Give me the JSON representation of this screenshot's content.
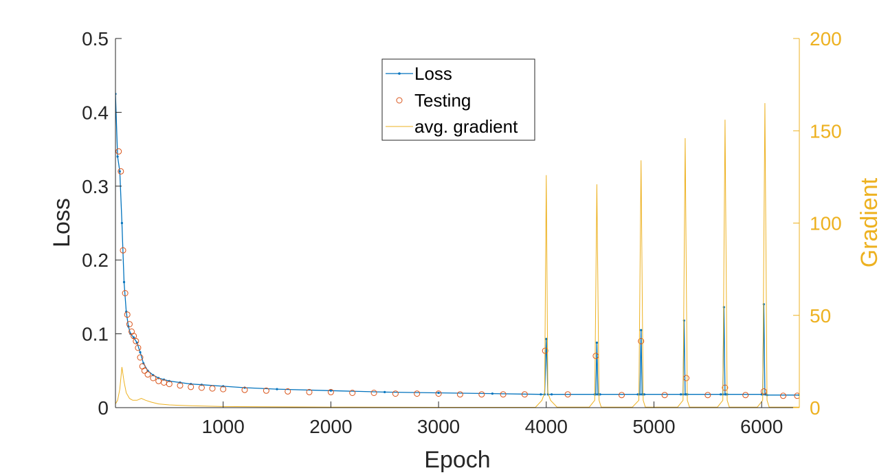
{
  "chart_data": {
    "type": "line",
    "title": "",
    "xlabel": "Epoch",
    "ylabel": "Loss",
    "y2label": "Gradient",
    "xlim": [
      0,
      6350
    ],
    "ylim": [
      0,
      0.5
    ],
    "y2lim": [
      0,
      200
    ],
    "xticks": [
      1000,
      2000,
      3000,
      4000,
      5000,
      6000
    ],
    "yticks": [
      0,
      0.1,
      0.2,
      0.3,
      0.4,
      0.5
    ],
    "y2ticks": [
      0,
      50,
      100,
      150,
      200
    ],
    "grid": false,
    "legend_position": "top-center",
    "colors": {
      "loss": "#0072BD",
      "testing": "#D95319",
      "gradient": "#EDB120",
      "axis": "#262626"
    },
    "series": [
      {
        "name": "Loss",
        "axis": "left",
        "style": "line-dot",
        "x": [
          0,
          20,
          40,
          60,
          80,
          100,
          120,
          140,
          170,
          200,
          230,
          260,
          300,
          350,
          400,
          450,
          500,
          600,
          700,
          800,
          1000,
          1200,
          1500,
          2000,
          2500,
          3000,
          3500,
          3950,
          3985,
          4000,
          4015,
          4050,
          4450,
          4460,
          4470,
          4480,
          4490,
          4500,
          4850,
          4870,
          4880,
          4890,
          4900,
          4910,
          5250,
          5270,
          5280,
          5290,
          5300,
          5310,
          5620,
          5640,
          5650,
          5660,
          5670,
          5680,
          6000,
          6010,
          6020,
          6030,
          6040,
          6050,
          6350
        ],
        "y": [
          0.425,
          0.34,
          0.32,
          0.25,
          0.17,
          0.13,
          0.11,
          0.1,
          0.095,
          0.088,
          0.075,
          0.06,
          0.05,
          0.044,
          0.04,
          0.038,
          0.036,
          0.034,
          0.032,
          0.031,
          0.029,
          0.027,
          0.025,
          0.023,
          0.021,
          0.02,
          0.019,
          0.018,
          0.018,
          0.093,
          0.018,
          0.018,
          0.018,
          0.018,
          0.088,
          0.018,
          0.018,
          0.018,
          0.018,
          0.018,
          0.105,
          0.018,
          0.018,
          0.018,
          0.018,
          0.018,
          0.118,
          0.018,
          0.018,
          0.018,
          0.018,
          0.018,
          0.136,
          0.018,
          0.018,
          0.018,
          0.018,
          0.018,
          0.14,
          0.018,
          0.018,
          0.017,
          0.017
        ]
      },
      {
        "name": "Testing",
        "axis": "left",
        "style": "circle",
        "x": [
          30,
          50,
          70,
          90,
          110,
          130,
          150,
          170,
          190,
          210,
          230,
          250,
          270,
          300,
          350,
          400,
          450,
          500,
          600,
          700,
          800,
          900,
          1000,
          1200,
          1400,
          1600,
          1800,
          2000,
          2200,
          2400,
          2600,
          2800,
          3000,
          3200,
          3400,
          3600,
          3800,
          3990,
          4200,
          4460,
          4700,
          4880,
          5100,
          5300,
          5500,
          5660,
          5850,
          6020,
          6200,
          6330
        ],
        "y": [
          0.347,
          0.32,
          0.213,
          0.155,
          0.126,
          0.113,
          0.103,
          0.097,
          0.09,
          0.081,
          0.068,
          0.056,
          0.05,
          0.045,
          0.04,
          0.036,
          0.034,
          0.032,
          0.03,
          0.028,
          0.027,
          0.026,
          0.025,
          0.024,
          0.023,
          0.022,
          0.021,
          0.021,
          0.02,
          0.02,
          0.019,
          0.019,
          0.019,
          0.018,
          0.018,
          0.018,
          0.018,
          0.077,
          0.018,
          0.07,
          0.017,
          0.09,
          0.017,
          0.04,
          0.017,
          0.027,
          0.017,
          0.022,
          0.016,
          0.016
        ]
      },
      {
        "name": "avg. gradient",
        "axis": "right",
        "style": "line",
        "x": [
          0,
          20,
          40,
          60,
          80,
          100,
          130,
          160,
          200,
          240,
          280,
          330,
          400,
          500,
          700,
          1000,
          1500,
          2000,
          3000,
          3900,
          3960,
          3985,
          4000,
          4015,
          4040,
          4100,
          4400,
          4450,
          4470,
          4490,
          4510,
          4560,
          4800,
          4860,
          4880,
          4900,
          4920,
          4970,
          5220,
          5270,
          5290,
          5310,
          5330,
          5380,
          5590,
          5640,
          5660,
          5680,
          5700,
          5750,
          5960,
          6010,
          6030,
          6050,
          6070,
          6120,
          6350
        ],
        "y": [
          2,
          4,
          10,
          22,
          14,
          8,
          5,
          4,
          4,
          5,
          4,
          3,
          2,
          1.5,
          1,
          0.6,
          0.4,
          0.3,
          0.2,
          0.2,
          4,
          8,
          126,
          8,
          4,
          0.3,
          0.3,
          4,
          121,
          4,
          0.3,
          0.3,
          0.3,
          4,
          134,
          4,
          0.3,
          0.3,
          0.3,
          4,
          146,
          4,
          0.3,
          0.3,
          0.3,
          4,
          156,
          4,
          0.3,
          0.3,
          0.3,
          4,
          165,
          4,
          0.3,
          0.3,
          0.3
        ]
      }
    ]
  }
}
